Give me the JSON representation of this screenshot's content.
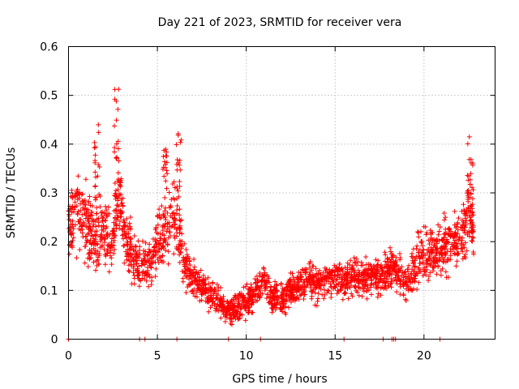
{
  "chart_data": {
    "type": "scatter",
    "title": "Day 221 of 2023, SRMTID for receiver vera",
    "xlabel": "GPS time / hours",
    "ylabel": "SRMTID / TECUs",
    "xlim": [
      0,
      24
    ],
    "ylim": [
      0,
      0.6
    ],
    "xticks": [
      0,
      5,
      10,
      15,
      20
    ],
    "yticks": [
      0,
      0.1,
      0.2,
      0.3,
      0.4,
      0.5,
      0.6
    ],
    "ytick_labels": [
      "0",
      "0.1",
      "0.2",
      "0.3",
      "0.4",
      "0.5",
      "0.6"
    ],
    "grid": true,
    "marker": "+",
    "color": "#ff0000",
    "baseline_hours": [
      0,
      4.0,
      4.3,
      6.1,
      9.0,
      10.8,
      15.5,
      17.7,
      18.2,
      18.3,
      18.4,
      20.9
    ],
    "envelope_hours": [
      0,
      0.3,
      0.6,
      1.0,
      1.5,
      2.0,
      2.5,
      2.8,
      3.2,
      3.8,
      4.5,
      5.0,
      5.5,
      6.0,
      6.5,
      7.0,
      7.5,
      8.0,
      8.5,
      9.0,
      9.5,
      10.0,
      10.5,
      11.0,
      11.5,
      12.0,
      12.5,
      13.0,
      13.5,
      14.0,
      14.5,
      15.0,
      15.5,
      16.0,
      16.5,
      17.0,
      17.5,
      18.0,
      18.5,
      19.0,
      19.5,
      20.0,
      20.5,
      21.0,
      21.5,
      22.0,
      22.5,
      22.8
    ],
    "envelope_tecu": [
      0.22,
      0.28,
      0.26,
      0.24,
      0.2,
      0.22,
      0.2,
      0.3,
      0.2,
      0.16,
      0.15,
      0.2,
      0.22,
      0.26,
      0.15,
      0.12,
      0.11,
      0.09,
      0.08,
      0.06,
      0.065,
      0.075,
      0.1,
      0.12,
      0.08,
      0.08,
      0.1,
      0.11,
      0.12,
      0.12,
      0.12,
      0.13,
      0.12,
      0.13,
      0.12,
      0.13,
      0.13,
      0.15,
      0.14,
      0.12,
      0.15,
      0.18,
      0.17,
      0.19,
      0.2,
      0.2,
      0.25,
      0.22
    ],
    "peaks": [
      {
        "hour": 1.6,
        "tecu": 0.44
      },
      {
        "hour": 2.7,
        "tecu": 0.515
      },
      {
        "hour": 5.4,
        "tecu": 0.39
      },
      {
        "hour": 6.2,
        "tecu": 0.43
      },
      {
        "hour": 22.6,
        "tecu": 0.415
      }
    ]
  }
}
